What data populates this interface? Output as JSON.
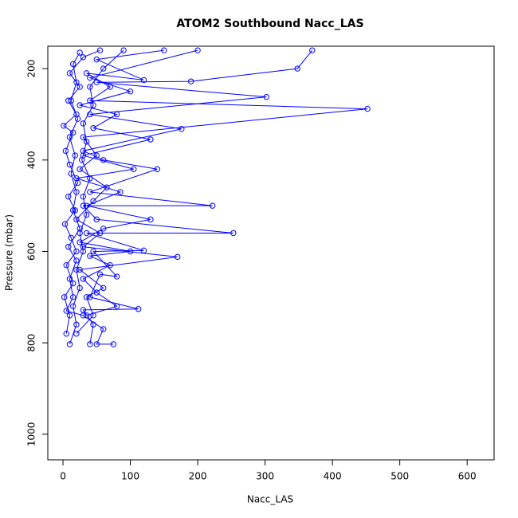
{
  "chart_data": {
    "type": "line",
    "title": "ATOM2 Southbound Nacc_LAS",
    "xlabel": "Nacc_LAS",
    "ylabel": "Pressure (mbar)",
    "marker": "open-circle",
    "xlim": [
      -22.5,
      640
    ],
    "ylim": [
      1056,
      151
    ],
    "y_inverted": true,
    "xticks": [
      0,
      100,
      200,
      300,
      400,
      500,
      600
    ],
    "yticks": [
      200,
      400,
      600,
      800,
      1000
    ],
    "series": [
      {
        "color": "#0000ff",
        "x": [
          10,
          20,
          15,
          25,
          20,
          30,
          25,
          35,
          30,
          40,
          28,
          35,
          30,
          45,
          40,
          60,
          90
        ],
        "values": [
          803,
          760,
          720,
          680,
          640,
          600,
          560,
          520,
          480,
          440,
          400,
          360,
          320,
          280,
          240,
          200,
          160
        ]
      },
      {
        "color": "#0000ff",
        "x": [
          40,
          45,
          30,
          112,
          40,
          55,
          80,
          45,
          120,
          35,
          253,
          50,
          30,
          222,
          40,
          140,
          60,
          30,
          176,
          40,
          302,
          50,
          190,
          348,
          370
        ],
        "values": [
          803,
          760,
          728,
          726,
          700,
          650,
          655,
          600,
          598,
          560,
          560,
          530,
          500,
          500,
          470,
          420,
          400,
          380,
          332,
          300,
          262,
          230,
          228,
          200,
          160
        ]
      },
      {
        "color": "#0000ff",
        "x": [
          75,
          50,
          60,
          30,
          5,
          15,
          10,
          20,
          8,
          25,
          15,
          20,
          12,
          18,
          10,
          22,
          12,
          20,
          15,
          25
        ],
        "values": [
          803,
          803,
          770,
          740,
          730,
          700,
          660,
          620,
          590,
          550,
          510,
          470,
          430,
          390,
          350,
          310,
          270,
          230,
          190,
          165
        ]
      },
      {
        "color": "#0000ff",
        "x": [
          20,
          45,
          35,
          60,
          25,
          170,
          30,
          55,
          20,
          45,
          65,
          25,
          50,
          30,
          452,
          40,
          70,
          35,
          120,
          50,
          150
        ],
        "values": [
          780,
          740,
          700,
          680,
          640,
          612,
          590,
          560,
          530,
          490,
          460,
          420,
          390,
          350,
          288,
          270,
          240,
          210,
          225,
          180,
          160
        ]
      },
      {
        "color": "#0000ff",
        "x": [
          5,
          10,
          2,
          15,
          5,
          20,
          12,
          3,
          18,
          8,
          22,
          10,
          4,
          15,
          1,
          20,
          8,
          25,
          10,
          30,
          55
        ],
        "values": [
          780,
          740,
          700,
          670,
          630,
          600,
          570,
          540,
          510,
          480,
          450,
          410,
          380,
          340,
          325,
          300,
          270,
          240,
          210,
          175,
          160
        ]
      },
      {
        "color": "#0000ff",
        "x": [
          35,
          80,
          50,
          30,
          70,
          40,
          100,
          25,
          60,
          130,
          35,
          85,
          20,
          105,
          30,
          130,
          45,
          80,
          25,
          100,
          40,
          200
        ],
        "values": [
          740,
          720,
          690,
          660,
          630,
          610,
          600,
          580,
          550,
          530,
          500,
          470,
          440,
          420,
          390,
          355,
          330,
          300,
          280,
          250,
          220,
          160
        ]
      }
    ]
  }
}
